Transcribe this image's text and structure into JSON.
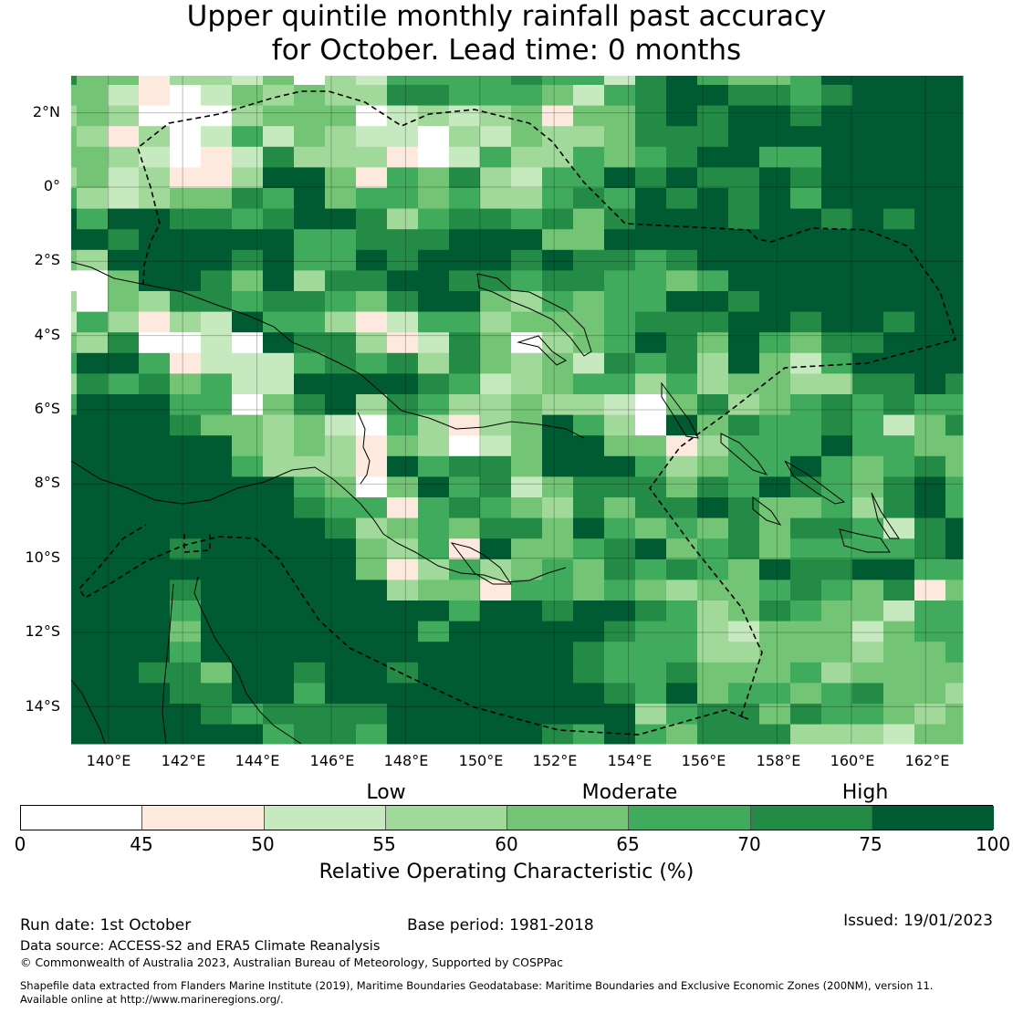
{
  "title": {
    "line1": "Upper quintile monthly rainfall past accuracy",
    "line2": "for October. Lead time: 0 months"
  },
  "axes": {
    "y_labels": [
      "2°N",
      "0°",
      "2°S",
      "4°S",
      "6°S",
      "8°S",
      "10°S",
      "12°S",
      "14°S"
    ],
    "x_labels": [
      "140°E",
      "142°E",
      "144°E",
      "146°E",
      "148°E",
      "150°E",
      "152°E",
      "154°E",
      "156°E",
      "158°E",
      "160°E",
      "162°E"
    ]
  },
  "chart_data": {
    "type": "heatmap",
    "title": "Upper quintile monthly rainfall past accuracy for October. Lead time: 0 months",
    "lon_range": [
      139,
      163
    ],
    "lat_range": [
      -15,
      3
    ],
    "value_label": "Relative Operating Characteristic (%)",
    "class_bins": [
      [
        0,
        45
      ],
      [
        45,
        50
      ],
      [
        50,
        55
      ],
      [
        55,
        60
      ],
      [
        60,
        65
      ],
      [
        65,
        70
      ],
      [
        70,
        75
      ],
      [
        75,
        100
      ]
    ],
    "class_colors": [
      "#ffffff",
      "#fee9df",
      "#c7e9c0",
      "#a1d99b",
      "#74c476",
      "#41ab5d",
      "#238b45",
      "#005a32"
    ],
    "grid_classes_rows_north_to_south": [
      [
        6,
        4,
        4,
        1,
        3,
        3,
        2,
        4,
        0,
        3,
        2,
        5,
        5,
        5,
        5,
        6,
        5,
        5,
        2,
        6,
        7,
        5,
        4,
        4,
        5,
        7,
        7,
        7,
        7,
        7
      ],
      [
        4,
        4,
        2,
        1,
        0,
        2,
        4,
        3,
        4,
        3,
        3,
        6,
        6,
        5,
        5,
        5,
        4,
        2,
        5,
        6,
        7,
        7,
        6,
        6,
        5,
        6,
        7,
        7,
        7,
        7
      ],
      [
        3,
        4,
        3,
        0,
        0,
        0,
        3,
        4,
        4,
        4,
        0,
        2,
        3,
        2,
        3,
        4,
        1,
        4,
        4,
        6,
        7,
        6,
        7,
        7,
        6,
        7,
        7,
        7,
        7,
        7
      ],
      [
        4,
        3,
        1,
        3,
        0,
        2,
        5,
        2,
        4,
        3,
        2,
        2,
        0,
        3,
        2,
        4,
        3,
        3,
        4,
        6,
        6,
        6,
        7,
        7,
        7,
        7,
        7,
        7,
        7,
        7
      ],
      [
        4,
        4,
        3,
        2,
        0,
        1,
        2,
        6,
        3,
        3,
        3,
        1,
        0,
        2,
        5,
        3,
        3,
        5,
        4,
        5,
        6,
        7,
        7,
        5,
        5,
        7,
        7,
        7,
        7,
        7
      ],
      [
        3,
        4,
        2,
        3,
        1,
        1,
        3,
        7,
        7,
        4,
        1,
        5,
        4,
        6,
        3,
        2,
        5,
        5,
        7,
        6,
        7,
        6,
        6,
        7,
        6,
        7,
        7,
        7,
        7,
        7
      ],
      [
        5,
        3,
        2,
        3,
        4,
        4,
        6,
        5,
        7,
        4,
        5,
        5,
        4,
        5,
        3,
        3,
        5,
        6,
        5,
        7,
        6,
        7,
        6,
        7,
        5,
        7,
        7,
        7,
        7,
        7
      ],
      [
        7,
        5,
        7,
        7,
        6,
        6,
        5,
        6,
        7,
        7,
        6,
        3,
        5,
        6,
        6,
        5,
        6,
        4,
        6,
        7,
        7,
        7,
        6,
        7,
        7,
        6,
        7,
        6,
        7,
        7
      ],
      [
        7,
        7,
        6,
        7,
        7,
        7,
        7,
        7,
        5,
        5,
        6,
        6,
        6,
        7,
        7,
        7,
        4,
        4,
        7,
        7,
        7,
        7,
        7,
        7,
        7,
        7,
        7,
        7,
        7,
        7
      ],
      [
        4,
        3,
        7,
        7,
        7,
        7,
        6,
        7,
        5,
        5,
        7,
        6,
        7,
        7,
        7,
        6,
        7,
        6,
        6,
        5,
        6,
        7,
        7,
        7,
        7,
        7,
        7,
        7,
        7,
        7
      ],
      [
        0,
        0,
        4,
        7,
        7,
        6,
        4,
        7,
        3,
        6,
        6,
        7,
        7,
        6,
        6,
        5,
        6,
        6,
        5,
        5,
        4,
        5,
        7,
        7,
        7,
        7,
        7,
        7,
        7,
        7
      ],
      [
        3,
        0,
        4,
        3,
        6,
        6,
        5,
        6,
        6,
        5,
        4,
        6,
        7,
        7,
        4,
        3,
        5,
        4,
        5,
        5,
        7,
        7,
        6,
        7,
        7,
        7,
        7,
        7,
        7,
        7
      ],
      [
        2,
        5,
        3,
        1,
        3,
        2,
        7,
        5,
        5,
        3,
        1,
        2,
        5,
        5,
        3,
        4,
        4,
        4,
        5,
        6,
        6,
        6,
        7,
        7,
        6,
        7,
        7,
        6,
        7,
        7
      ],
      [
        4,
        3,
        6,
        0,
        0,
        2,
        0,
        7,
        6,
        6,
        3,
        1,
        2,
        6,
        4,
        0,
        3,
        4,
        5,
        7,
        6,
        4,
        7,
        5,
        4,
        6,
        6,
        7,
        7,
        7
      ],
      [
        5,
        7,
        7,
        5,
        1,
        2,
        2,
        2,
        5,
        6,
        5,
        6,
        3,
        6,
        4,
        3,
        4,
        2,
        6,
        5,
        6,
        3,
        7,
        4,
        2,
        5,
        7,
        7,
        7,
        7
      ],
      [
        3,
        6,
        5,
        6,
        4,
        5,
        2,
        2,
        7,
        7,
        7,
        7,
        6,
        5,
        2,
        3,
        4,
        5,
        5,
        3,
        5,
        3,
        4,
        4,
        3,
        3,
        6,
        6,
        7,
        6
      ],
      [
        5,
        7,
        7,
        7,
        5,
        5,
        0,
        4,
        6,
        7,
        3,
        6,
        5,
        3,
        3,
        4,
        3,
        3,
        2,
        0,
        4,
        6,
        3,
        4,
        5,
        6,
        5,
        6,
        5,
        5
      ],
      [
        7,
        7,
        7,
        7,
        6,
        4,
        4,
        3,
        4,
        2,
        0,
        5,
        3,
        1,
        3,
        4,
        7,
        5,
        3,
        0,
        7,
        4,
        6,
        5,
        5,
        6,
        5,
        2,
        4,
        6
      ],
      [
        7,
        7,
        7,
        7,
        7,
        7,
        4,
        3,
        4,
        3,
        1,
        4,
        3,
        0,
        2,
        4,
        7,
        7,
        4,
        4,
        1,
        3,
        5,
        5,
        5,
        7,
        5,
        5,
        4,
        4
      ],
      [
        7,
        7,
        7,
        7,
        7,
        7,
        5,
        3,
        3,
        3,
        1,
        7,
        5,
        6,
        6,
        4,
        7,
        7,
        7,
        5,
        3,
        4,
        5,
        5,
        7,
        5,
        4,
        5,
        6,
        4
      ],
      [
        7,
        7,
        7,
        7,
        7,
        7,
        7,
        7,
        5,
        4,
        0,
        4,
        7,
        5,
        6,
        2,
        4,
        6,
        6,
        6,
        4,
        6,
        5,
        7,
        6,
        5,
        4,
        6,
        7,
        5
      ],
      [
        7,
        7,
        7,
        7,
        7,
        7,
        7,
        7,
        6,
        5,
        5,
        1,
        5,
        6,
        5,
        4,
        3,
        6,
        4,
        6,
        6,
        7,
        6,
        4,
        4,
        5,
        3,
        6,
        7,
        5
      ],
      [
        7,
        7,
        7,
        7,
        7,
        7,
        7,
        7,
        7,
        6,
        3,
        4,
        5,
        4,
        6,
        6,
        4,
        7,
        5,
        4,
        5,
        4,
        6,
        4,
        6,
        6,
        5,
        2,
        6,
        7
      ],
      [
        7,
        7,
        7,
        7,
        6,
        7,
        7,
        7,
        7,
        7,
        4,
        3,
        5,
        1,
        7,
        4,
        4,
        5,
        6,
        7,
        4,
        5,
        6,
        4,
        5,
        5,
        5,
        5,
        6,
        7
      ],
      [
        7,
        7,
        7,
        7,
        7,
        7,
        7,
        7,
        7,
        7,
        4,
        1,
        3,
        5,
        3,
        4,
        5,
        4,
        6,
        5,
        6,
        5,
        4,
        7,
        6,
        6,
        7,
        7,
        5,
        5
      ],
      [
        7,
        7,
        7,
        7,
        6,
        7,
        7,
        7,
        7,
        7,
        7,
        3,
        4,
        4,
        1,
        5,
        5,
        4,
        5,
        4,
        3,
        4,
        4,
        5,
        6,
        5,
        4,
        6,
        1,
        4
      ],
      [
        7,
        7,
        7,
        7,
        5,
        7,
        7,
        7,
        7,
        7,
        7,
        7,
        7,
        5,
        7,
        7,
        6,
        7,
        7,
        6,
        5,
        3,
        4,
        6,
        5,
        4,
        4,
        2,
        5,
        5
      ],
      [
        7,
        7,
        7,
        7,
        4,
        7,
        7,
        7,
        7,
        7,
        7,
        7,
        5,
        7,
        7,
        7,
        7,
        7,
        6,
        5,
        5,
        3,
        2,
        4,
        4,
        4,
        2,
        4,
        5,
        5
      ],
      [
        7,
        7,
        7,
        7,
        5,
        7,
        7,
        7,
        7,
        7,
        7,
        7,
        7,
        7,
        7,
        7,
        7,
        6,
        5,
        5,
        5,
        3,
        3,
        4,
        4,
        4,
        3,
        4,
        4,
        5
      ],
      [
        7,
        7,
        7,
        6,
        6,
        4,
        7,
        7,
        6,
        7,
        7,
        6,
        7,
        7,
        7,
        7,
        7,
        6,
        5,
        5,
        6,
        4,
        4,
        4,
        5,
        3,
        4,
        4,
        4,
        4
      ],
      [
        7,
        7,
        7,
        7,
        6,
        6,
        7,
        7,
        5,
        7,
        7,
        7,
        7,
        7,
        7,
        7,
        7,
        7,
        6,
        5,
        7,
        4,
        5,
        5,
        4,
        5,
        6,
        4,
        4,
        3
      ],
      [
        7,
        7,
        7,
        7,
        7,
        6,
        5,
        6,
        6,
        6,
        6,
        7,
        7,
        7,
        7,
        7,
        7,
        7,
        7,
        3,
        5,
        6,
        6,
        4,
        6,
        5,
        5,
        4,
        3,
        4
      ],
      [
        7,
        7,
        7,
        7,
        7,
        7,
        7,
        5,
        6,
        6,
        5,
        7,
        7,
        7,
        7,
        7,
        6,
        5,
        7,
        5,
        4,
        6,
        6,
        6,
        3,
        3,
        3,
        2,
        4,
        4
      ]
    ]
  },
  "colorbar": {
    "categories": [
      "Low",
      "Moderate",
      "High"
    ],
    "ticks": [
      "0",
      "45",
      "50",
      "55",
      "60",
      "65",
      "70",
      "75",
      "100"
    ],
    "label": "Relative Operating Characteristic (%)"
  },
  "footer": {
    "run_date": "Run date: 1st October",
    "base_period": "Base period: 1981-2018",
    "issued": "Issued: 19/01/2023",
    "data_source": "Data source: ACCESS-S2 and ERA5 Climate Reanalysis",
    "copyright": "© Commonwealth of Australia 2023, Australian Bureau of Meteorology, Supported by COSPPac",
    "shapefile_line1": "Shapefile data extracted from Flanders Marine Institute (2019), Maritime Boundaries Geodatabase: Maritime Boundaries and Exclusive Economic Zones (200NM), version 11.",
    "shapefile_line2": "Available online at http://www.marineregions.org/."
  }
}
